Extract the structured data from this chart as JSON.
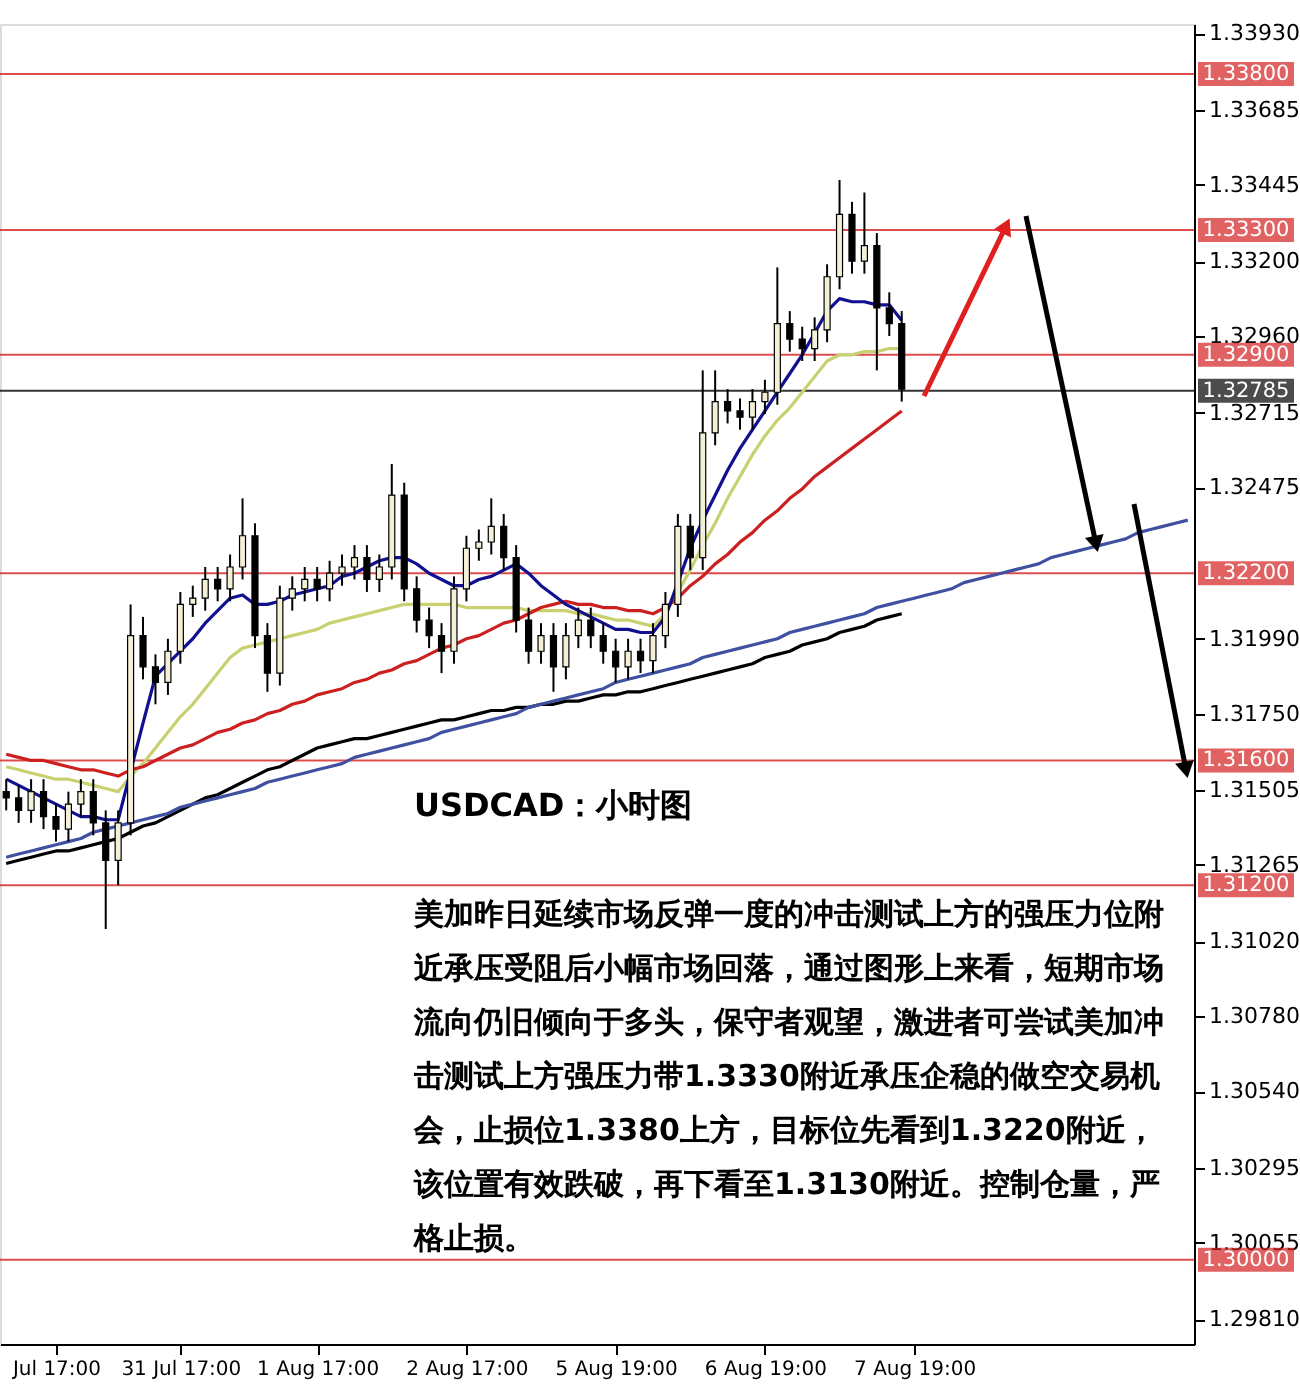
{
  "chart_data": {
    "type": "candlestick",
    "categories": [
      null,
      null,
      null,
      null,
      "Jul 17:00",
      null,
      null,
      null,
      null,
      null,
      null,
      null,
      null,
      null,
      "31 Jul 17:00",
      null,
      null,
      null,
      null,
      null,
      null,
      null,
      null,
      null,
      null,
      "1 Aug 17:00",
      null,
      null,
      null,
      null,
      null,
      null,
      null,
      null,
      null,
      null,
      null,
      "2 Aug 17:00",
      null,
      null,
      null,
      null,
      null,
      null,
      null,
      null,
      null,
      null,
      null,
      "5 Aug 19:00",
      null,
      null,
      null,
      null,
      null,
      null,
      null,
      null,
      null,
      null,
      null,
      "6 Aug 19:00",
      null,
      null,
      null,
      null,
      null,
      null,
      null,
      null,
      null,
      null,
      null,
      "7 Aug 19:00",
      null,
      null,
      null,
      null,
      null,
      null,
      null,
      null,
      null,
      null,
      null,
      null,
      null,
      null,
      null,
      null,
      null,
      null,
      null,
      null,
      null,
      null
    ],
    "ohlc": [
      [
        1.315,
        1.3154,
        1.3144,
        1.3148
      ],
      [
        1.3148,
        1.3152,
        1.314,
        1.3144
      ],
      [
        1.3144,
        1.3154,
        1.314,
        1.315
      ],
      [
        1.315,
        1.3154,
        1.3138,
        1.3142
      ],
      [
        1.3142,
        1.3146,
        1.3134,
        1.3138
      ],
      [
        1.3138,
        1.315,
        1.3134,
        1.3146
      ],
      [
        1.3146,
        1.3154,
        1.3142,
        1.315
      ],
      [
        1.315,
        1.3154,
        1.3136,
        1.314
      ],
      [
        1.314,
        1.3144,
        1.3106,
        1.3128
      ],
      [
        1.3128,
        1.3144,
        1.312,
        1.314
      ],
      [
        1.314,
        1.321,
        1.3136,
        1.32
      ],
      [
        1.32,
        1.3206,
        1.3186,
        1.319
      ],
      [
        1.319,
        1.3194,
        1.3178,
        1.3185
      ],
      [
        1.3185,
        1.3199,
        1.3181,
        1.3195
      ],
      [
        1.3195,
        1.3214,
        1.3191,
        1.321
      ],
      [
        1.321,
        1.3216,
        1.3206,
        1.3212
      ],
      [
        1.3212,
        1.3222,
        1.3208,
        1.3218
      ],
      [
        1.3218,
        1.3222,
        1.3211,
        1.3215
      ],
      [
        1.3215,
        1.3226,
        1.3211,
        1.3222
      ],
      [
        1.3222,
        1.3244,
        1.3218,
        1.3232
      ],
      [
        1.3232,
        1.3236,
        1.3196,
        1.32
      ],
      [
        1.32,
        1.3204,
        1.3182,
        1.3188
      ],
      [
        1.3188,
        1.3216,
        1.3184,
        1.3212
      ],
      [
        1.3212,
        1.3219,
        1.3208,
        1.3215
      ],
      [
        1.3215,
        1.3222,
        1.3211,
        1.3218
      ],
      [
        1.3218,
        1.3222,
        1.3211,
        1.3215
      ],
      [
        1.3215,
        1.3224,
        1.3211,
        1.322
      ],
      [
        1.322,
        1.3226,
        1.3216,
        1.3222
      ],
      [
        1.3222,
        1.3229,
        1.3218,
        1.3225
      ],
      [
        1.3225,
        1.3229,
        1.3214,
        1.3218
      ],
      [
        1.3218,
        1.3226,
        1.3214,
        1.3222
      ],
      [
        1.3222,
        1.3255,
        1.3218,
        1.3245
      ],
      [
        1.3245,
        1.3249,
        1.3211,
        1.3215
      ],
      [
        1.3215,
        1.3219,
        1.3201,
        1.3205
      ],
      [
        1.3205,
        1.3209,
        1.3196,
        1.32
      ],
      [
        1.32,
        1.3204,
        1.3188,
        1.3195
      ],
      [
        1.3195,
        1.3219,
        1.3191,
        1.3215
      ],
      [
        1.3215,
        1.3232,
        1.3211,
        1.3228
      ],
      [
        1.3228,
        1.3234,
        1.3224,
        1.323
      ],
      [
        1.323,
        1.3244,
        1.3226,
        1.3235
      ],
      [
        1.3235,
        1.3239,
        1.3221,
        1.3225
      ],
      [
        1.3225,
        1.3229,
        1.3201,
        1.3205
      ],
      [
        1.3205,
        1.3209,
        1.3191,
        1.3195
      ],
      [
        1.3195,
        1.3204,
        1.3191,
        1.32
      ],
      [
        1.32,
        1.3204,
        1.3182,
        1.319
      ],
      [
        1.319,
        1.3204,
        1.3186,
        1.32
      ],
      [
        1.32,
        1.3209,
        1.3196,
        1.3205
      ],
      [
        1.3205,
        1.3209,
        1.3196,
        1.32
      ],
      [
        1.32,
        1.3204,
        1.3191,
        1.3195
      ],
      [
        1.3195,
        1.3199,
        1.3185,
        1.319
      ],
      [
        1.319,
        1.3199,
        1.3186,
        1.3195
      ],
      [
        1.3195,
        1.3199,
        1.3188,
        1.3192
      ],
      [
        1.3192,
        1.3204,
        1.3188,
        1.32
      ],
      [
        1.32,
        1.3214,
        1.3196,
        1.321
      ],
      [
        1.321,
        1.3239,
        1.3206,
        1.3235
      ],
      [
        1.3235,
        1.3239,
        1.3221,
        1.3225
      ],
      [
        1.3225,
        1.3285,
        1.3221,
        1.3265
      ],
      [
        1.3265,
        1.3285,
        1.3261,
        1.3275
      ],
      [
        1.3275,
        1.3279,
        1.3268,
        1.3272
      ],
      [
        1.3272,
        1.3276,
        1.3266,
        1.327
      ],
      [
        1.327,
        1.3279,
        1.3266,
        1.3275
      ],
      [
        1.3275,
        1.3282,
        1.3271,
        1.3278
      ],
      [
        1.3278,
        1.3318,
        1.3274,
        1.33
      ],
      [
        1.33,
        1.3304,
        1.3291,
        1.3295
      ],
      [
        1.3295,
        1.3299,
        1.3288,
        1.3292
      ],
      [
        1.3292,
        1.3302,
        1.3288,
        1.3298
      ],
      [
        1.3298,
        1.3319,
        1.3294,
        1.3315
      ],
      [
        1.3315,
        1.3346,
        1.3311,
        1.3335
      ],
      [
        1.3335,
        1.3339,
        1.3316,
        1.332
      ],
      [
        1.332,
        1.3342,
        1.3316,
        1.3325
      ],
      [
        1.3325,
        1.3329,
        1.3285,
        1.3305
      ],
      [
        1.3305,
        1.331,
        1.3296,
        1.33
      ],
      [
        1.33,
        1.3304,
        1.3275,
        1.3279
      ],
      null,
      null,
      null,
      null,
      null,
      null,
      null,
      null,
      null,
      null,
      null,
      null,
      null,
      null,
      null,
      null,
      null,
      null,
      null,
      null,
      null,
      null,
      null
    ],
    "series": [
      {
        "type": "line",
        "color": "#c8d070",
        "values": [
          1.3158,
          1.3157,
          1.3156,
          1.3155,
          1.3154,
          1.3154,
          1.3153,
          1.3152,
          1.3151,
          1.315,
          1.3155,
          1.3159,
          1.3164,
          1.3169,
          1.3174,
          1.3178,
          1.3183,
          1.3188,
          1.3193,
          1.3196,
          1.3197,
          1.3198,
          1.3199,
          1.32,
          1.3201,
          1.3202,
          1.3204,
          1.3205,
          1.3206,
          1.3207,
          1.3208,
          1.3209,
          1.321,
          1.321,
          1.321,
          1.321,
          1.321,
          1.3209,
          1.3209,
          1.3209,
          1.3209,
          1.3209,
          1.3208,
          1.3208,
          1.3208,
          1.3208,
          1.3207,
          1.3207,
          1.3206,
          1.3205,
          1.3205,
          1.3204,
          1.3203,
          1.3207,
          1.3214,
          1.3221,
          1.3229,
          1.3236,
          1.3244,
          1.3251,
          1.3258,
          1.3264,
          1.3269,
          1.3273,
          1.3278,
          1.3283,
          1.3288,
          1.329,
          1.329,
          1.3291,
          1.3291,
          1.3292,
          1.3292,
          null,
          null,
          null,
          null,
          null,
          null,
          null,
          null,
          null,
          null,
          null,
          null,
          null,
          null,
          null,
          null,
          null,
          null,
          null,
          null,
          null,
          null,
          null
        ]
      },
      {
        "type": "line",
        "color": "#cc2020",
        "values": [
          1.3162,
          1.3161,
          1.316,
          1.316,
          1.3159,
          1.3158,
          1.3157,
          1.3157,
          1.3156,
          1.3155,
          1.3157,
          1.3158,
          1.316,
          1.3162,
          1.3164,
          1.3165,
          1.3167,
          1.3169,
          1.317,
          1.3172,
          1.3173,
          1.3175,
          1.3176,
          1.3178,
          1.3179,
          1.3181,
          1.3182,
          1.3183,
          1.3185,
          1.3186,
          1.3188,
          1.3189,
          1.3191,
          1.3192,
          1.3194,
          1.3196,
          1.3197,
          1.3199,
          1.32,
          1.3202,
          1.3204,
          1.3205,
          1.3207,
          1.3209,
          1.321,
          1.3211,
          1.321,
          1.321,
          1.3209,
          1.3209,
          1.3208,
          1.3208,
          1.3207,
          1.3209,
          1.3212,
          1.3216,
          1.3219,
          1.3223,
          1.3226,
          1.323,
          1.3233,
          1.3237,
          1.324,
          1.3244,
          1.3247,
          1.3251,
          1.3254,
          1.3257,
          1.326,
          1.3263,
          1.3266,
          1.3269,
          1.3272,
          null,
          null,
          null,
          null,
          null,
          null,
          null,
          null,
          null,
          null,
          null,
          null,
          null,
          null,
          null,
          null,
          null,
          null,
          null,
          null,
          null,
          null,
          null
        ]
      },
      {
        "type": "line",
        "color": "#101090",
        "values": [
          1.3154,
          1.3152,
          1.315,
          1.3148,
          1.3146,
          1.3144,
          1.3142,
          1.3142,
          1.3141,
          1.3141,
          null,
          1.3172,
          1.3187,
          1.3191,
          1.3195,
          1.3199,
          1.3204,
          1.3208,
          1.3212,
          1.3213,
          1.321,
          1.321,
          1.3211,
          1.3213,
          1.3214,
          1.3215,
          1.3216,
          1.3219,
          1.322,
          1.3222,
          1.3224,
          1.3225,
          1.3225,
          1.3223,
          1.322,
          1.3218,
          1.3216,
          1.3216,
          1.3218,
          1.3219,
          1.3221,
          1.3223,
          1.322,
          1.3216,
          1.3213,
          1.321,
          1.3208,
          1.3206,
          1.3204,
          1.3202,
          1.3202,
          1.3201,
          1.3201,
          1.3206,
          1.3217,
          1.3228,
          1.3237,
          1.3245,
          1.3253,
          1.326,
          1.3266,
          1.3272,
          1.3278,
          1.3284,
          1.329,
          1.3297,
          1.3304,
          1.3308,
          1.3307,
          1.3307,
          1.3306,
          1.3306,
          1.3301,
          null,
          null,
          null,
          null,
          null,
          null,
          null,
          null,
          null,
          null,
          null,
          null,
          null,
          null,
          null,
          null,
          null,
          null,
          null,
          null,
          null,
          null,
          null
        ]
      },
      {
        "type": "line",
        "color": "#000000",
        "values": [
          1.3127,
          1.3128,
          1.3129,
          1.313,
          1.3131,
          1.3131,
          1.3132,
          1.3133,
          1.3134,
          1.3135,
          1.3137,
          1.3139,
          1.314,
          1.3142,
          1.3144,
          1.3146,
          1.3148,
          1.3149,
          1.3151,
          1.3153,
          1.3155,
          1.3157,
          1.3158,
          1.316,
          1.3162,
          1.3164,
          1.3165,
          1.3166,
          1.3167,
          1.3167,
          1.3168,
          1.3169,
          1.317,
          1.3171,
          1.3172,
          1.3173,
          1.3173,
          1.3174,
          1.3175,
          1.3176,
          1.3176,
          1.3177,
          1.3177,
          1.3178,
          1.3178,
          1.3179,
          1.3179,
          1.318,
          1.3181,
          1.3181,
          1.3182,
          1.3182,
          1.3183,
          1.3184,
          1.3185,
          1.3186,
          1.3187,
          1.3188,
          1.3189,
          1.319,
          1.3191,
          1.3193,
          1.3194,
          1.3195,
          1.3197,
          1.3198,
          1.3199,
          1.3201,
          1.3202,
          1.3203,
          1.3205,
          1.3206,
          1.3207,
          null,
          null,
          null,
          null,
          null,
          null,
          null,
          null,
          null,
          null,
          null,
          null,
          null,
          null,
          null,
          null,
          null,
          null,
          null,
          null,
          null,
          null,
          null
        ]
      },
      {
        "type": "line",
        "color": "#4050a0",
        "values": [
          1.3129,
          1.313,
          1.3131,
          1.3132,
          1.3133,
          1.3134,
          1.3135,
          1.3137,
          1.3138,
          1.3139,
          1.314,
          1.3141,
          1.3142,
          1.3143,
          1.3145,
          1.3146,
          1.3147,
          1.3148,
          1.3149,
          1.315,
          1.3151,
          1.3153,
          1.3154,
          1.3155,
          1.3156,
          1.3157,
          1.3158,
          1.3159,
          1.3161,
          1.3162,
          1.3163,
          1.3164,
          1.3165,
          1.3166,
          1.3167,
          1.3169,
          1.317,
          1.3171,
          1.3172,
          1.3173,
          1.3174,
          1.3175,
          1.3177,
          1.3178,
          1.3179,
          1.318,
          1.3181,
          1.3182,
          1.3183,
          1.3185,
          1.3186,
          1.3187,
          1.3188,
          1.3189,
          1.319,
          1.3191,
          1.3193,
          1.3194,
          1.3195,
          1.3196,
          1.3197,
          1.3198,
          1.3199,
          1.3201,
          1.3202,
          1.3203,
          1.3204,
          1.3205,
          1.3206,
          1.3207,
          1.3209,
          1.321,
          1.3211,
          1.3212,
          1.3213,
          1.3214,
          1.3215,
          1.3217,
          1.3218,
          1.3219,
          1.322,
          1.3221,
          1.3222,
          1.3223,
          1.3225,
          1.3226,
          1.3227,
          1.3228,
          1.3229,
          1.323,
          1.3231,
          1.3233,
          1.3234,
          1.3235,
          1.3236,
          1.3237
        ]
      }
    ],
    "ref_lines": [
      {
        "axis": "y",
        "value": 1.338,
        "label": "1.33800",
        "color": "#d42020"
      },
      {
        "axis": "y",
        "value": 1.333,
        "label": "1.33300",
        "color": "#d42020"
      },
      {
        "axis": "y",
        "value": 1.329,
        "label": "1.32900",
        "color": "#d42020"
      },
      {
        "axis": "y",
        "value": 1.32785,
        "label": "1.32785",
        "color": "#000000"
      },
      {
        "axis": "y",
        "value": 1.322,
        "label": "1.32200",
        "color": "#d42020"
      },
      {
        "axis": "y",
        "value": 1.316,
        "label": "1.31600",
        "color": "#d42020"
      },
      {
        "axis": "y",
        "value": 1.312,
        "label": "1.31200",
        "color": "#d42020"
      },
      {
        "axis": "y",
        "value": 1.3,
        "label": "1.30000",
        "color": "#d42020"
      }
    ],
    "annotations": [
      "USDCAD：小时图",
      "美加昨日延续市场反弹一度的冲击测试上方的强压力位附近承压受阻后小幅市场回落，通过图形上来看，短期市场流向仍旧倾向于多头，保守者观望，激进者可尝试美加冲击测试上方强压力带1.3330附近承压企稳的做空交易机会，止损位1.3380上方，目标位先看到1.3220附近，该位置有效跌破，再下看至1.3130附近。控制仓量，严格止损。"
    ],
    "ylim": [
      1.2973,
      1.3396
    ],
    "yticks": [
      {
        "value": 1.3393,
        "label": "1.33930"
      },
      {
        "value": 1.33685,
        "label": "1.33685"
      },
      {
        "value": 1.33445,
        "label": "1.33445"
      },
      {
        "value": 1.332,
        "label": "1.33200"
      },
      {
        "value": 1.3296,
        "label": "1.32960"
      },
      {
        "value": 1.32715,
        "label": "1.32715"
      },
      {
        "value": 1.32475,
        "label": "1.32475"
      },
      {
        "value": 1.3199,
        "label": "1.31990"
      },
      {
        "value": 1.3175,
        "label": "1.31750"
      },
      {
        "value": 1.31505,
        "label": "1.31505"
      },
      {
        "value": 1.31265,
        "label": "1.31265"
      },
      {
        "value": 1.3102,
        "label": "1.31020"
      },
      {
        "value": 1.3078,
        "label": "1.30780"
      },
      {
        "value": 1.3054,
        "label": "1.30540"
      },
      {
        "value": 1.30295,
        "label": "1.30295"
      },
      {
        "value": 1.30055,
        "label": "1.30055"
      },
      {
        "value": 1.2981,
        "label": "1.29810"
      }
    ]
  }
}
